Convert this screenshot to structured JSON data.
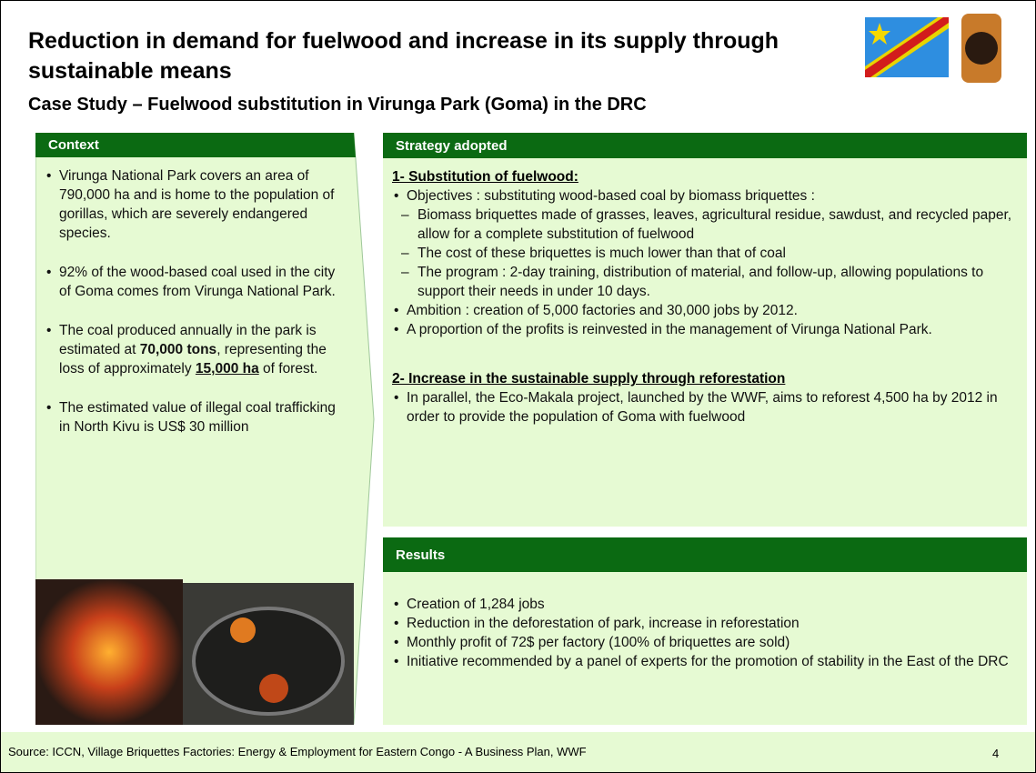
{
  "title": "Reduction in demand for fuelwood and increase in its supply through sustainable means",
  "subtitle": "Case Study – Fuelwood substitution in Virunga Park (Goma) in the DRC",
  "context": {
    "header": "Context",
    "bullets": [
      [
        {
          "text": "Virunga National Park covers an area of 790,000 ha and is home to the population of gorillas, which are severely endangered species."
        }
      ],
      [
        {
          "text": "92% of the wood-based coal used in the city of Goma comes from Virunga National Park."
        }
      ],
      [
        {
          "text": "The coal produced annually in the park is estimated at "
        },
        {
          "text": "70,000 tons",
          "style": "bold"
        },
        {
          "text": ", representing the loss of approximately "
        },
        {
          "text": "15,000 ha",
          "style": "bold-underline"
        },
        {
          "text": " of forest."
        }
      ],
      [
        {
          "text": "The estimated value of illegal coal trafficking in North Kivu is US$ 30 million"
        }
      ]
    ]
  },
  "strategy": {
    "header": "Strategy adopted",
    "sections": [
      {
        "heading": "1- Substitution of fuelwood:",
        "items": [
          {
            "text": "Objectives : substituting wood-based coal by biomass briquettes :",
            "sub": [
              "Biomass briquettes made of grasses, leaves, agricultural residue, sawdust, and recycled paper, allow for a complete substitution of fuelwood",
              "The cost of these briquettes is much lower than that of coal",
              "The program : 2-day training, distribution of material, and follow-up, allowing populations to  support their needs in under 10 days."
            ]
          },
          {
            "text": "Ambition : creation of 5,000 factories and 30,000 jobs by 2012."
          },
          {
            "text": "A proportion of the profits is reinvested in the management of Virunga National Park."
          }
        ]
      },
      {
        "heading": "2- Increase in the sustainable supply through reforestation",
        "items": [
          {
            "text": "In parallel, the Eco-Makala project, launched by the WWF, aims to reforest 4,500 ha by 2012 in order to provide the population of Goma with fuelwood"
          }
        ]
      }
    ]
  },
  "results": {
    "header": "Results",
    "bullets": [
      "Creation of 1,284  jobs",
      "Reduction in the deforestation of park, increase in reforestation",
      "Monthly profit of 72$ per factory (100% of briquettes are sold)",
      "Initiative recommended by a panel of experts for the promotion of stability in the East of the DRC"
    ]
  },
  "footer": {
    "source": "Source: ICCN, Village Briquettes Factories: Energy & Employment for Eastern Congo - A Business Plan, WWF",
    "page": "4"
  }
}
